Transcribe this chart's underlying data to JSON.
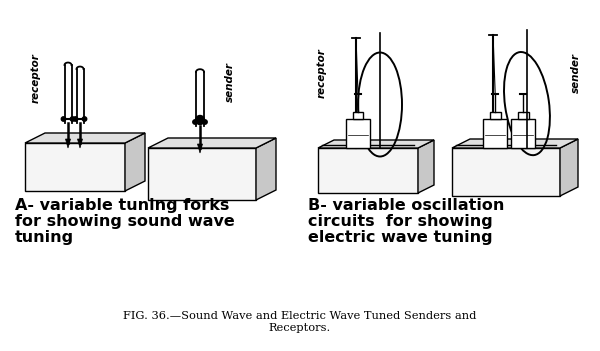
{
  "bg_color": "#ffffff",
  "fig_width": 6.0,
  "fig_height": 3.51,
  "caption": "FIG. 36.—Sound Wave and Electric Wave Tuned Senders and\nReceptors.",
  "label_A_line1": "A- variable tuning forks",
  "label_A_line2": "for showing sound wave",
  "label_A_line3": "tuning",
  "label_B_line1": "B- variable oscillation",
  "label_B_line2": "circuits  for showing",
  "label_B_line3": "electric wave tuning",
  "receptor_label": "receptor",
  "sender_label": "sender"
}
